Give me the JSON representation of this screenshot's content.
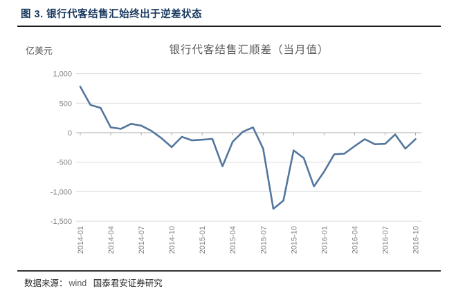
{
  "header": {
    "figure_title": "图 3. 银行代客结售汇始终出于逆差状态"
  },
  "footer": {
    "source_label": "数据来源：",
    "source_1": "wind",
    "source_2": "国泰君安证券研究"
  },
  "chart_data": {
    "type": "line",
    "title": "银行代客结售汇顺差（当月值）",
    "unit_label": "亿美元",
    "xlabel": "",
    "ylabel": "亿美元",
    "x": [
      "2014-01",
      "2014-02",
      "2014-03",
      "2014-04",
      "2014-05",
      "2014-06",
      "2014-07",
      "2014-08",
      "2014-09",
      "2014-10",
      "2014-11",
      "2014-12",
      "2015-01",
      "2015-02",
      "2015-03",
      "2015-04",
      "2015-05",
      "2015-06",
      "2015-07",
      "2015-08",
      "2015-09",
      "2015-10",
      "2015-11",
      "2015-12",
      "2016-01",
      "2016-02",
      "2016-03",
      "2016-04",
      "2016-05",
      "2016-06",
      "2016-07",
      "2016-08",
      "2016-09",
      "2016-10"
    ],
    "values": [
      780,
      470,
      420,
      90,
      65,
      150,
      120,
      30,
      -95,
      -245,
      -70,
      -130,
      -120,
      -105,
      -570,
      -155,
      15,
      90,
      -270,
      -1290,
      -1150,
      -300,
      -430,
      -910,
      -660,
      -365,
      -355,
      -230,
      -110,
      -195,
      -190,
      -30,
      -270,
      -110
    ],
    "x_tick_labels": [
      "2014-01",
      "2014-04",
      "2014-07",
      "2014-10",
      "2015-01",
      "2015-04",
      "2015-07",
      "2015-10",
      "2016-01",
      "2016-04",
      "2016-07",
      "2016-10"
    ],
    "x_tick_every": 3,
    "ylim": [
      -1500,
      1000
    ],
    "y_ticks": [
      1000,
      500,
      0,
      -500,
      -1000,
      -1500
    ],
    "y_tick_labels": [
      "1,000",
      "500",
      "0",
      "-500",
      "-1,000",
      "-1,500"
    ],
    "grid": true,
    "legend": "none",
    "line_color": "#53769D",
    "grid_color": "#d9d9d9",
    "axis_color": "#ababab",
    "title_color": "#17375e"
  }
}
